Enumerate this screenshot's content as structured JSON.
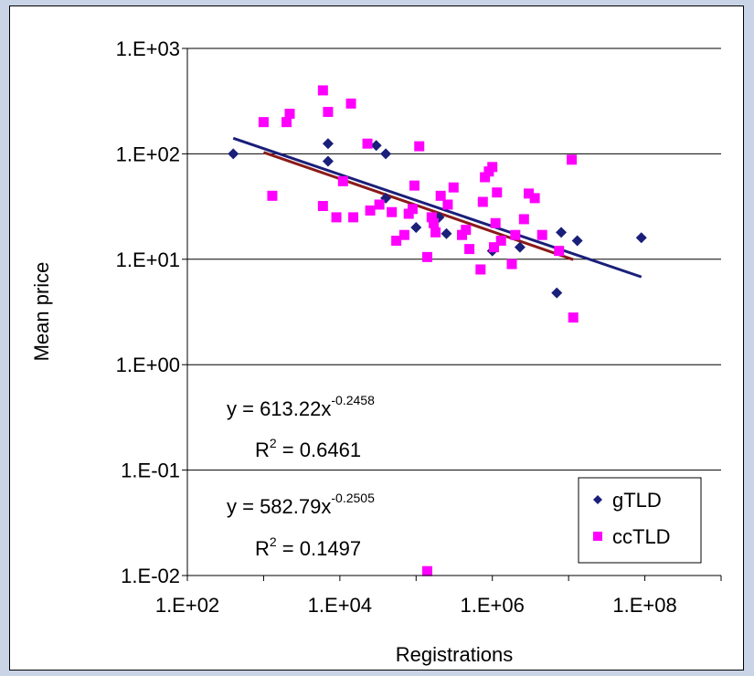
{
  "chart_data": {
    "type": "scatter",
    "title": "",
    "xlabel": "Registrations",
    "ylabel": "Mean price",
    "x_scale": "log",
    "y_scale": "log",
    "xlim": [
      100,
      1000000000
    ],
    "ylim": [
      0.01,
      1000
    ],
    "x_ticks": [
      "1.E+02",
      "1.E+04",
      "1.E+06",
      "1.E+08"
    ],
    "x_tick_values": [
      100,
      10000,
      1000000,
      100000000
    ],
    "y_ticks": [
      "1.E-02",
      "1.E-01",
      "1.E+00",
      "1.E+01",
      "1.E+02",
      "1.E+03"
    ],
    "y_tick_values": [
      0.01,
      0.1,
      1,
      10,
      100,
      1000
    ],
    "grid": "horizontal",
    "legend_position": "bottom-right",
    "colors": {
      "gtld": "#1a1f7a",
      "cctld": "#ff00ff",
      "gtld_trend": "#1a1f7a",
      "cctld_trend": "#8b1a1a",
      "grid": "#000000",
      "background": "#c9d4e6"
    },
    "series": [
      {
        "name": "gTLD",
        "marker": "diamond",
        "points": [
          [
            400,
            100
          ],
          [
            7000,
            125
          ],
          [
            7000,
            85
          ],
          [
            30000,
            120
          ],
          [
            40000,
            100
          ],
          [
            40000,
            38
          ],
          [
            100000,
            20
          ],
          [
            200000,
            25
          ],
          [
            250000,
            17.5
          ],
          [
            1000000,
            12
          ],
          [
            2300000,
            13
          ],
          [
            7000000,
            4.8
          ],
          [
            8000000,
            18
          ],
          [
            13000000,
            15
          ],
          [
            90000000,
            16
          ]
        ]
      },
      {
        "name": "ccTLD",
        "marker": "square",
        "points": [
          [
            1000,
            200
          ],
          [
            2000,
            200
          ],
          [
            2200,
            240
          ],
          [
            6000,
            400
          ],
          [
            7000,
            250
          ],
          [
            14000,
            300
          ],
          [
            23000,
            125
          ],
          [
            1300,
            40
          ],
          [
            6000,
            32
          ],
          [
            9000,
            25
          ],
          [
            11000,
            55
          ],
          [
            15000,
            25
          ],
          [
            25000,
            29
          ],
          [
            33000,
            33
          ],
          [
            48000,
            28
          ],
          [
            55000,
            15
          ],
          [
            70000,
            17
          ],
          [
            80000,
            27
          ],
          [
            90000,
            30
          ],
          [
            95000,
            50
          ],
          [
            110000,
            118
          ],
          [
            140000,
            10.5
          ],
          [
            160000,
            25
          ],
          [
            170000,
            22
          ],
          [
            180000,
            18
          ],
          [
            210000,
            40
          ],
          [
            260000,
            33
          ],
          [
            310000,
            48
          ],
          [
            400000,
            17
          ],
          [
            450000,
            19
          ],
          [
            500000,
            12.5
          ],
          [
            700000,
            8
          ],
          [
            750000,
            35
          ],
          [
            800000,
            60
          ],
          [
            900000,
            68
          ],
          [
            1000000,
            75
          ],
          [
            1050000,
            13
          ],
          [
            1100000,
            22
          ],
          [
            1150000,
            43
          ],
          [
            1300000,
            15
          ],
          [
            1800000,
            9
          ],
          [
            2000000,
            17
          ],
          [
            2600000,
            24
          ],
          [
            3000000,
            42
          ],
          [
            3600000,
            38
          ],
          [
            4500000,
            17
          ],
          [
            7500000,
            12
          ],
          [
            11000000,
            88
          ],
          [
            11500000,
            2.8
          ],
          [
            140000,
            0.011
          ]
        ]
      }
    ],
    "trendlines": [
      {
        "series": "gTLD",
        "x_range": [
          400,
          90000000
        ],
        "equation": "y = 613.22x",
        "exponent": "-0.2458",
        "r2_label": "R",
        "r2_sup": "2",
        "r2_value": " = 0.6461",
        "a": 613.22,
        "b": -0.2458
      },
      {
        "series": "ccTLD",
        "x_range": [
          1000,
          11500000
        ],
        "equation": "y = 582.79x",
        "exponent": "-0.2505",
        "r2_label": "R",
        "r2_sup": "2",
        "r2_value": " = 0.1497",
        "a": 582.79,
        "b": -0.2505
      }
    ]
  }
}
